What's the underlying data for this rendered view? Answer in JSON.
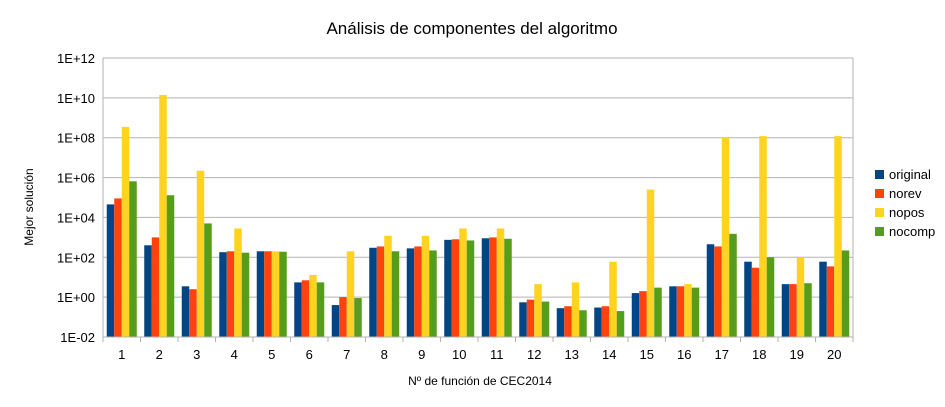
{
  "chart_data": {
    "type": "bar",
    "title": "Análisis de componentes del algoritmo",
    "xlabel": "Nº de función de CEC2014",
    "ylabel": "Mejor solución",
    "yscale": "log",
    "ylim": [
      0.01,
      1000000000000.0
    ],
    "ytick_labels": [
      "1E-02",
      "1E+00",
      "1E+02",
      "1E+04",
      "1E+06",
      "1E+08",
      "1E+10",
      "1E+12"
    ],
    "ytick_values": [
      0.01,
      1,
      100,
      10000,
      1000000,
      100000000,
      10000000000,
      1000000000000
    ],
    "grid": true,
    "legend_position": "right",
    "categories": [
      "1",
      "2",
      "3",
      "4",
      "5",
      "6",
      "7",
      "8",
      "9",
      "10",
      "11",
      "12",
      "13",
      "14",
      "15",
      "16",
      "17",
      "18",
      "19",
      "20"
    ],
    "series": [
      {
        "name": "original",
        "color": "#004586",
        "values": [
          45000,
          400,
          3.5,
          180,
          200,
          5.5,
          0.4,
          300,
          280,
          750,
          900,
          0.55,
          0.28,
          0.3,
          1.6,
          3.5,
          450,
          60,
          4.5,
          60
        ]
      },
      {
        "name": "norev",
        "color": "#ff420e",
        "values": [
          90000,
          1000,
          2.5,
          200,
          200,
          7,
          1,
          350,
          350,
          800,
          1000,
          0.75,
          0.35,
          0.35,
          2,
          3.5,
          350,
          30,
          4.5,
          35
        ]
      },
      {
        "name": "nopos",
        "color": "#ffd320",
        "values": [
          350000000.0,
          14000000000.0,
          2200000.0,
          2800,
          200,
          13,
          200,
          1200,
          1200,
          2800,
          2800,
          4.5,
          5.5,
          60,
          250000,
          4.5,
          100000000.0,
          120000000.0,
          100,
          120000000.0
        ]
      },
      {
        "name": "nocomp",
        "color": "#579d1c",
        "values": [
          650000,
          130000,
          5000,
          170,
          190,
          5.5,
          0.9,
          200,
          220,
          700,
          850,
          0.6,
          0.22,
          0.2,
          3,
          3,
          1500,
          100,
          5,
          220
        ]
      }
    ]
  }
}
